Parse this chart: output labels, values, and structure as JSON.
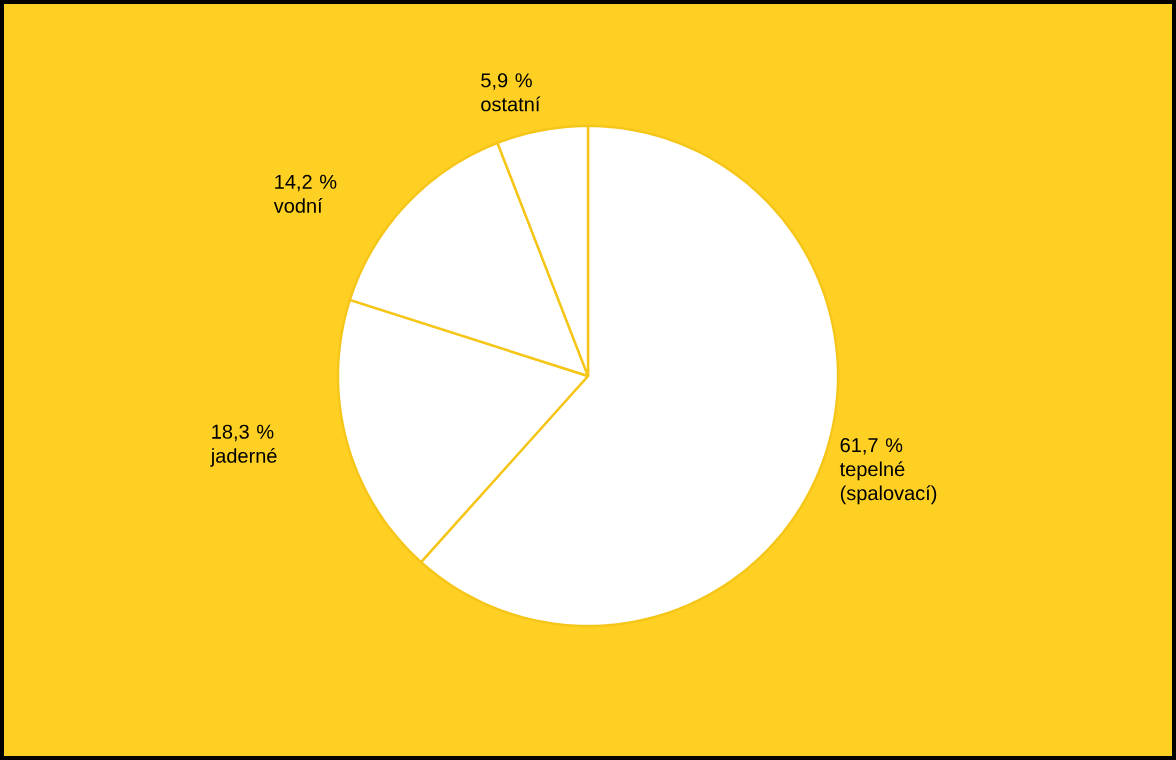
{
  "chart_data": {
    "type": "pie",
    "categories": [
      "tepelné (spalovací)",
      "jaderné",
      "vodní",
      "ostatní"
    ],
    "values": [
      61.7,
      18.3,
      14.2,
      5.9
    ],
    "value_labels": [
      "61,7 %",
      "18,3 %",
      "14,2 %",
      "5,9 %"
    ],
    "colors": [
      "#ffffff",
      "#ffffff",
      "#ffffff",
      "#ffffff"
    ]
  }
}
